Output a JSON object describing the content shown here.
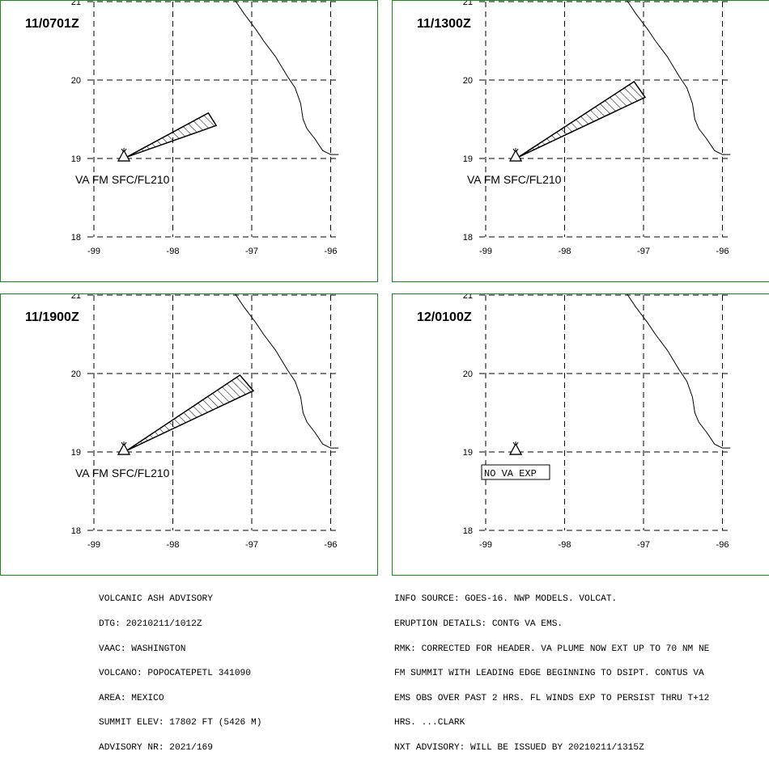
{
  "panels": [
    {
      "time": "11/0701Z",
      "va_label": "VA FM SFC/FL210",
      "plume": [
        [
          -98.58,
          19.02
        ],
        [
          -97.55,
          19.58
        ],
        [
          -97.45,
          19.42
        ]
      ]
    },
    {
      "time": "11/1300Z",
      "va_label": "VA FM SFC/FL210",
      "plume": [
        [
          -98.58,
          19.02
        ],
        [
          -97.12,
          19.98
        ],
        [
          -96.98,
          19.78
        ]
      ]
    },
    {
      "time": "11/1900Z",
      "va_label": "VA FM SFC/FL210",
      "plume": [
        [
          -98.58,
          19.02
        ],
        [
          -97.15,
          19.98
        ],
        [
          -96.98,
          19.78
        ]
      ]
    },
    {
      "time": "12/0100Z",
      "va_label": "",
      "no_va_box": "NO VA EXP",
      "plume": []
    }
  ],
  "axes": {
    "lon_ticks": [
      -99,
      -98,
      -97,
      -96
    ],
    "lat_ticks": [
      18,
      19,
      20,
      21
    ],
    "lon_labels": [
      "-99",
      "-98",
      "-97",
      "-96"
    ],
    "lat_labels": [
      "18",
      "19",
      "20",
      "21"
    ]
  },
  "volcano": {
    "lon": -98.62,
    "lat": 19.02
  },
  "coastline": [
    [
      -97.32,
      21.2
    ],
    [
      -97.2,
      21.0
    ],
    [
      -97.1,
      20.85
    ],
    [
      -96.95,
      20.65
    ],
    [
      -96.85,
      20.5
    ],
    [
      -96.7,
      20.3
    ],
    [
      -96.55,
      20.05
    ],
    [
      -96.45,
      19.9
    ],
    [
      -96.38,
      19.7
    ],
    [
      -96.35,
      19.5
    ],
    [
      -96.3,
      19.38
    ],
    [
      -96.2,
      19.25
    ],
    [
      -96.1,
      19.1
    ],
    [
      -96.0,
      19.05
    ],
    [
      -95.9,
      19.05
    ]
  ],
  "advisory_left": [
    "VOLCANIC ASH ADVISORY",
    "DTG: 20210211/1012Z",
    "VAAC: WASHINGTON",
    "VOLCANO: POPOCATEPETL 341090",
    "AREA: MEXICO",
    "SUMMIT ELEV: 17802 FT (5426 M)",
    "ADVISORY NR: 2021/169"
  ],
  "advisory_right": [
    "INFO SOURCE: GOES-16. NWP MODELS. VOLCAT.",
    "ERUPTION DETAILS: CONTG VA EMS.",
    "RMK: CORRECTED FOR HEADER. VA PLUME NOW EXT UP TO 70 NM NE",
    "FM SUMMIT WITH LEADING EDGE BEGINNING TO DSIPT. CONTUS VA",
    "EMS OBS OVER PAST 2 HRS. FL WINDS EXP TO PERSIST THRU T+12",
    "HRS. ...CLARK",
    "NXT ADVISORY: WILL BE ISSUED BY 20210211/1315Z"
  ],
  "colors": {
    "border": "#1a8a1a",
    "grid": "#000000",
    "plume": "#000000"
  }
}
